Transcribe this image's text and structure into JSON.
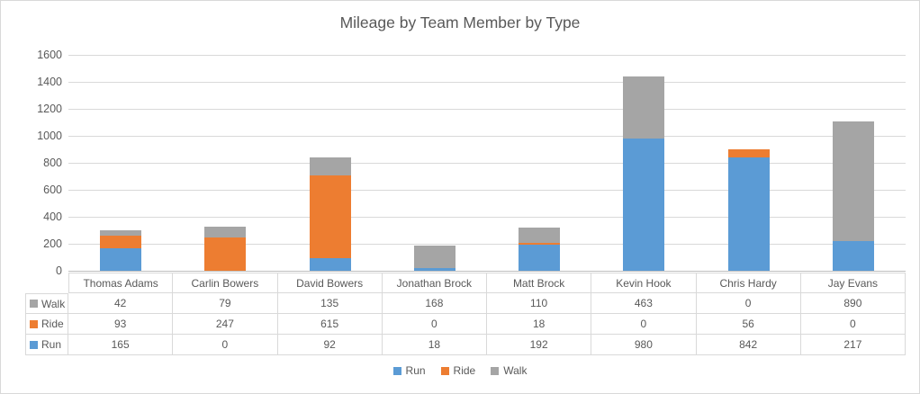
{
  "chart_data": {
    "type": "bar",
    "stacked": true,
    "title": "Mileage by Team Member by Type",
    "categories": [
      "Thomas Adams",
      "Carlin Bowers",
      "David Bowers",
      "Jonathan Brock",
      "Matt Brock",
      "Kevin Hook",
      "Chris Hardy",
      "Jay Evans"
    ],
    "series": [
      {
        "name": "Run",
        "color": "#5B9BD5",
        "values": [
          165,
          0,
          92,
          18,
          192,
          980,
          842,
          217
        ]
      },
      {
        "name": "Ride",
        "color": "#ED7D31",
        "values": [
          93,
          247,
          615,
          0,
          18,
          0,
          56,
          0
        ]
      },
      {
        "name": "Walk",
        "color": "#A5A5A5",
        "values": [
          42,
          79,
          135,
          168,
          110,
          463,
          0,
          890
        ]
      }
    ],
    "xlabel": "",
    "ylabel": "",
    "ylim": [
      0,
      1600
    ],
    "yticks": [
      0,
      200,
      400,
      600,
      800,
      1000,
      1200,
      1400,
      1600
    ],
    "grid": true,
    "legend_position": "bottom",
    "legend_order": [
      "Run",
      "Ride",
      "Walk"
    ],
    "data_table_row_order": [
      "Walk",
      "Ride",
      "Run"
    ]
  },
  "colors": {
    "text": "#595959",
    "gridline": "#D9D9D9",
    "zero_axis_line": "#BFBFBF",
    "table_border": "#D9D9D9",
    "background": "#FFFFFF"
  }
}
